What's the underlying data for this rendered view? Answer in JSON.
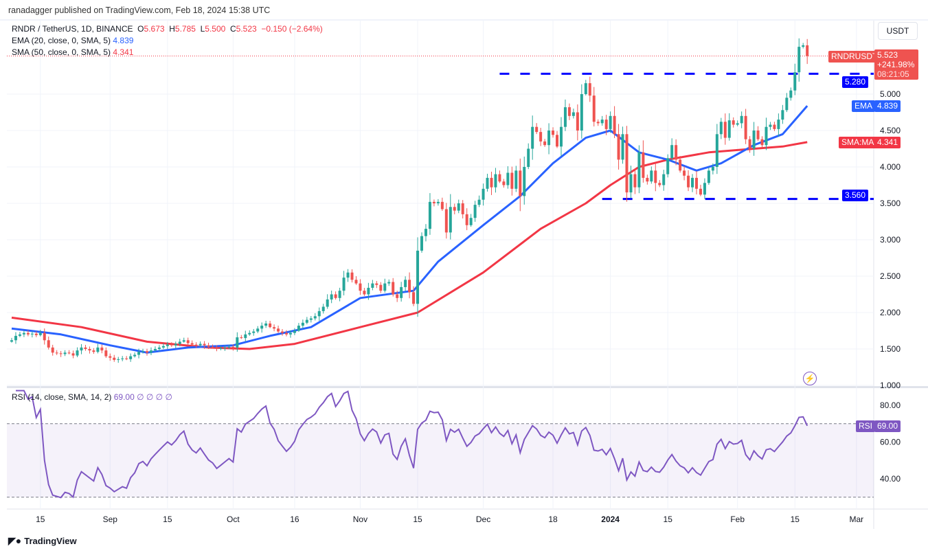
{
  "header": {
    "publisher": "ranadagger published on TradingView.com, Feb 18, 2024 15:38 UTC"
  },
  "legend": {
    "symbol": "RNDR / TetherUS, 1D, BINANCE",
    "o_label": "O",
    "o": "5.673",
    "h_label": "H",
    "h": "5.785",
    "l_label": "L",
    "l": "5.500",
    "c_label": "C",
    "c": "5.523",
    "change": "−0.150 (−2.64%)",
    "ema": "EMA (20, close, 0, SMA, 5)",
    "ema_value": "4.839",
    "sma": "SMA (50, close, 0, SMA, 5)",
    "sma_value": "4.341",
    "rsi": "RSI (14, close, SMA, 14, 2)",
    "rsi_value": "69.00",
    "rsi_extra": "∅ ∅ ∅ ∅"
  },
  "price_scale": {
    "currency": "USDT",
    "ticks": [
      "1.000",
      "1.500",
      "2.000",
      "2.500",
      "3.000",
      "3.500",
      "4.000",
      "4.500",
      "5.000"
    ]
  },
  "rsi_scale": {
    "ticks": [
      "40.00",
      "60.00",
      "80.00"
    ]
  },
  "tags": {
    "symbol": "RNDRUSDT",
    "last": "5.523",
    "pct": "+241.98%",
    "countdown": "08:21:05",
    "resistance": "5.280",
    "support": "3.560",
    "ema_label": "EMA",
    "ema": "4.839",
    "sma_label": "SMA:MA",
    "sma": "4.341",
    "rsi_label": "RSI",
    "rsi": "69.00"
  },
  "time_axis": [
    "15",
    "Sep",
    "15",
    "Oct",
    "16",
    "Nov",
    "15",
    "Dec",
    "18",
    "2024",
    "15",
    "Feb",
    "15",
    "Mar"
  ],
  "brand": "TradingView",
  "colors": {
    "up": "#26a69a",
    "down": "#ef5350",
    "ema": "#2962ff",
    "sma": "#f23645",
    "rsi": "#7e57c2",
    "levels": "#0000ff"
  },
  "chart_data": {
    "type": "candlestick",
    "first_date": "2023-08-08",
    "last_date": "2024-02-18",
    "ylim": [
      1.0,
      5.9
    ],
    "closes": [
      1.62,
      1.68,
      1.7,
      1.72,
      1.7,
      1.71,
      1.69,
      1.72,
      1.62,
      1.52,
      1.45,
      1.44,
      1.43,
      1.45,
      1.44,
      1.41,
      1.48,
      1.52,
      1.5,
      1.48,
      1.46,
      1.52,
      1.48,
      1.4,
      1.38,
      1.35,
      1.36,
      1.37,
      1.36,
      1.4,
      1.42,
      1.46,
      1.47,
      1.45,
      1.48,
      1.5,
      1.52,
      1.54,
      1.56,
      1.55,
      1.57,
      1.6,
      1.62,
      1.58,
      1.56,
      1.55,
      1.57,
      1.55,
      1.53,
      1.52,
      1.5,
      1.51,
      1.52,
      1.53,
      1.52,
      1.66,
      1.65,
      1.7,
      1.72,
      1.74,
      1.78,
      1.82,
      1.85,
      1.8,
      1.78,
      1.74,
      1.72,
      1.7,
      1.72,
      1.75,
      1.82,
      1.86,
      1.9,
      1.92,
      1.95,
      2.02,
      2.08,
      2.18,
      2.25,
      2.2,
      2.3,
      2.48,
      2.55,
      2.45,
      2.4,
      2.3,
      2.25,
      2.34,
      2.4,
      2.38,
      2.3,
      2.4,
      2.42,
      2.25,
      2.2,
      2.35,
      2.45,
      2.28,
      2.12,
      2.85,
      3.05,
      3.15,
      3.52,
      3.5,
      3.52,
      3.42,
      3.1,
      3.45,
      3.4,
      3.5,
      3.35,
      3.2,
      3.3,
      3.48,
      3.55,
      3.7,
      3.85,
      3.72,
      3.9,
      3.8,
      3.75,
      3.92,
      3.7,
      3.95,
      3.6,
      4.0,
      4.25,
      4.55,
      4.48,
      4.35,
      4.3,
      4.5,
      4.44,
      4.28,
      4.55,
      4.82,
      4.7,
      4.75,
      4.5,
      5.0,
      5.15,
      4.98,
      4.62,
      4.6,
      4.65,
      4.52,
      4.7,
      4.45,
      4.1,
      4.45,
      3.65,
      3.9,
      3.72,
      4.2,
      3.85,
      3.8,
      3.95,
      3.78,
      3.75,
      3.9,
      4.12,
      4.3,
      4.1,
      3.95,
      3.88,
      3.72,
      3.85,
      3.7,
      3.62,
      3.78,
      3.95,
      4.0,
      4.45,
      4.62,
      4.4,
      4.64,
      4.58,
      4.6,
      4.7,
      4.38,
      4.25,
      4.5,
      4.38,
      4.3,
      4.55,
      4.58,
      4.52,
      4.65,
      4.78,
      4.95,
      5.05,
      5.3,
      5.65,
      5.67,
      5.523
    ],
    "ema20": [
      [
        "2023-08-08",
        1.78
      ],
      [
        "2023-08-20",
        1.7
      ],
      [
        "2023-09-01",
        1.55
      ],
      [
        "2023-09-10",
        1.45
      ],
      [
        "2023-09-20",
        1.52
      ],
      [
        "2023-10-01",
        1.55
      ],
      [
        "2023-10-10",
        1.68
      ],
      [
        "2023-10-20",
        1.8
      ],
      [
        "2023-11-01",
        2.2
      ],
      [
        "2023-11-14",
        2.3
      ],
      [
        "2023-11-20",
        2.7
      ],
      [
        "2023-12-01",
        3.2
      ],
      [
        "2023-12-10",
        3.6
      ],
      [
        "2023-12-18",
        4.05
      ],
      [
        "2023-12-26",
        4.4
      ],
      [
        "2024-01-01",
        4.5
      ],
      [
        "2024-01-08",
        4.2
      ],
      [
        "2024-01-15",
        4.1
      ],
      [
        "2024-01-22",
        3.95
      ],
      [
        "2024-01-28",
        4.05
      ],
      [
        "2024-02-05",
        4.3
      ],
      [
        "2024-02-12",
        4.45
      ],
      [
        "2024-02-18",
        4.839
      ]
    ],
    "sma50": [
      [
        "2023-08-08",
        1.93
      ],
      [
        "2023-08-25",
        1.8
      ],
      [
        "2023-09-10",
        1.6
      ],
      [
        "2023-09-25",
        1.52
      ],
      [
        "2023-10-05",
        1.5
      ],
      [
        "2023-10-16",
        1.57
      ],
      [
        "2023-11-01",
        1.8
      ],
      [
        "2023-11-15",
        2.0
      ],
      [
        "2023-12-01",
        2.55
      ],
      [
        "2023-12-15",
        3.15
      ],
      [
        "2023-12-26",
        3.5
      ],
      [
        "2024-01-01",
        3.75
      ],
      [
        "2024-01-08",
        4.0
      ],
      [
        "2024-01-15",
        4.1
      ],
      [
        "2024-01-25",
        4.2
      ],
      [
        "2024-02-05",
        4.25
      ],
      [
        "2024-02-12",
        4.28
      ],
      [
        "2024-02-18",
        4.341
      ]
    ],
    "levels": [
      {
        "value": 5.28,
        "from": "2023-12-05"
      },
      {
        "value": 3.56,
        "from": "2023-12-30"
      }
    ],
    "rsi_levels": [
      70,
      30
    ],
    "rsi_ylim": [
      20,
      90
    ]
  }
}
